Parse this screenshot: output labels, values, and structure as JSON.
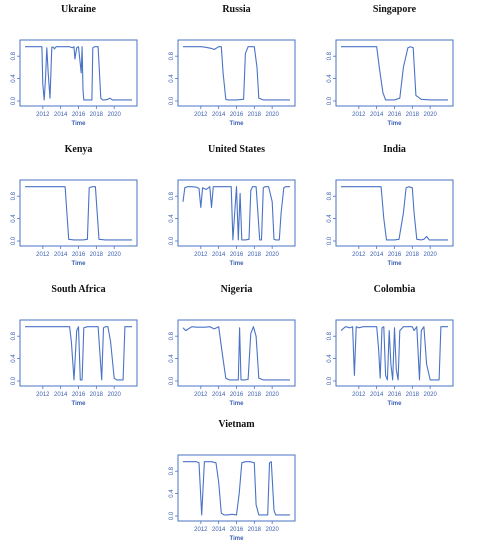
{
  "colors": {
    "series": "#4a73c6",
    "axis": "#4a73c6",
    "tick": "#3a5fb0",
    "title": "#111111"
  },
  "chart_data": [
    {
      "type": "line",
      "title": "Ukraine",
      "xlabel": "Time",
      "ylabel": "",
      "xlim": [
        2010,
        2022
      ],
      "ylim": [
        0,
        1
      ],
      "xticks": [
        "2012",
        "2014",
        "2016",
        "2018",
        "2020"
      ],
      "yticks": [
        "0.0",
        "0.4",
        "0.8"
      ],
      "series": [
        {
          "x": [
            2010,
            2011.9,
            2012.0,
            2012.15,
            2012.3,
            2012.45,
            2012.6,
            2012.8,
            2013,
            2013.2,
            2013.3,
            2013.5,
            2014,
            2015,
            2015.3,
            2015.5,
            2015.6,
            2015.8,
            2016,
            2016.3,
            2016.4,
            2016.5,
            2016.6,
            2016.8,
            2017.2,
            2017.5,
            2017.6,
            2017.8,
            2018.0,
            2018.2,
            2018.5,
            2018.7,
            2018.9,
            2019.3,
            2019.5,
            2019.8,
            2020,
            2020.2,
            2020.5,
            2022
          ],
          "y": [
            0.97,
            0.97,
            0.3,
            0.02,
            0.4,
            0.95,
            0.5,
            0.05,
            0.96,
            0.96,
            0.93,
            0.97,
            0.97,
            0.97,
            0.95,
            0.97,
            0.75,
            0.95,
            0.97,
            0.5,
            0.97,
            0.2,
            0.02,
            0.02,
            0.02,
            0.02,
            0.95,
            0.97,
            0.97,
            0.97,
            0.05,
            0.02,
            0.02,
            0.03,
            0.05,
            0.02,
            0.02,
            0.02,
            0.02,
            0.02
          ]
        }
      ]
    },
    {
      "type": "line",
      "title": "Russia",
      "xlabel": "Time",
      "ylabel": "",
      "xlim": [
        2010,
        2022
      ],
      "ylim": [
        0,
        1
      ],
      "xticks": [
        "2012",
        "2014",
        "2016",
        "2018",
        "2020"
      ],
      "yticks": [
        "0.0",
        "0.4",
        "0.8"
      ],
      "series": [
        {
          "x": [
            2010,
            2012,
            2012.5,
            2013.2,
            2013.5,
            2014,
            2014.3,
            2014.5,
            2014.8,
            2015,
            2016,
            2016.8,
            2017,
            2017.3,
            2018,
            2018.3,
            2018.5,
            2019,
            2020,
            2022
          ],
          "y": [
            0.97,
            0.97,
            0.96,
            0.94,
            0.92,
            0.97,
            0.97,
            0.5,
            0.03,
            0.02,
            0.02,
            0.03,
            0.85,
            0.97,
            0.97,
            0.6,
            0.05,
            0.02,
            0.02,
            0.02
          ]
        }
      ]
    },
    {
      "type": "line",
      "title": "Singapore",
      "xlabel": "Time",
      "ylabel": "",
      "xlim": [
        2010,
        2022
      ],
      "ylim": [
        0,
        1
      ],
      "xticks": [
        "2012",
        "2014",
        "2016",
        "2018",
        "2020"
      ],
      "yticks": [
        "0.0",
        "0.4",
        "0.8"
      ],
      "series": [
        {
          "x": [
            2010,
            2013,
            2014,
            2014.3,
            2014.7,
            2015,
            2016,
            2016.6,
            2017,
            2017.5,
            2017.8,
            2018.1,
            2018.4,
            2019,
            2020,
            2022
          ],
          "y": [
            0.97,
            0.97,
            0.97,
            0.6,
            0.15,
            0.02,
            0.02,
            0.05,
            0.6,
            0.95,
            0.97,
            0.95,
            0.1,
            0.03,
            0.02,
            0.02
          ]
        }
      ]
    },
    {
      "type": "line",
      "title": "Kenya",
      "xlabel": "Time",
      "ylabel": "",
      "xlim": [
        2010,
        2022
      ],
      "ylim": [
        0,
        1
      ],
      "xticks": [
        "2012",
        "2014",
        "2016",
        "2018",
        "2020"
      ],
      "yticks": [
        "0.0",
        "0.4",
        "0.8"
      ],
      "series": [
        {
          "x": [
            2010,
            2013,
            2014.5,
            2014.7,
            2014.9,
            2015.5,
            2016.5,
            2017,
            2017.2,
            2017.5,
            2017.9,
            2018.1,
            2018.3,
            2019,
            2020,
            2022
          ],
          "y": [
            0.97,
            0.97,
            0.97,
            0.5,
            0.03,
            0.02,
            0.02,
            0.03,
            0.95,
            0.97,
            0.97,
            0.5,
            0.03,
            0.02,
            0.02,
            0.02
          ]
        }
      ]
    },
    {
      "type": "line",
      "title": "United States",
      "xlabel": "Time",
      "ylabel": "",
      "xlim": [
        2010,
        2022
      ],
      "ylim": [
        0,
        1
      ],
      "xticks": [
        "2012",
        "2014",
        "2016",
        "2018",
        "2020"
      ],
      "yticks": [
        "0.0",
        "0.4",
        "0.8"
      ],
      "series": [
        {
          "x": [
            2010,
            2010.2,
            2010.5,
            2011,
            2011.5,
            2011.8,
            2012,
            2012.2,
            2012.6,
            2013,
            2013.2,
            2013.4,
            2013.8,
            2014,
            2014.5,
            2015,
            2015.4,
            2015.6,
            2015.8,
            2016,
            2016.2,
            2016.4,
            2016.6,
            2017,
            2017.4,
            2017.6,
            2017.8,
            2018.2,
            2018.4,
            2018.6,
            2018.8,
            2019,
            2019.2,
            2019.6,
            2020,
            2020.2,
            2020.4,
            2020.8,
            2021,
            2021.3,
            2021.5,
            2022
          ],
          "y": [
            0.7,
            0.95,
            0.97,
            0.97,
            0.96,
            0.94,
            0.6,
            0.95,
            0.92,
            0.97,
            0.6,
            0.97,
            0.97,
            0.97,
            0.97,
            0.97,
            0.97,
            0.02,
            0.5,
            0.97,
            0.02,
            0.85,
            0.02,
            0.02,
            0.03,
            0.9,
            0.97,
            0.97,
            0.5,
            0.02,
            0.02,
            0.95,
            0.97,
            0.97,
            0.7,
            0.03,
            0.02,
            0.02,
            0.5,
            0.95,
            0.97,
            0.97
          ]
        }
      ]
    },
    {
      "type": "line",
      "title": "India",
      "xlabel": "Time",
      "ylabel": "",
      "xlim": [
        2010,
        2022
      ],
      "ylim": [
        0,
        1
      ],
      "xticks": [
        "2012",
        "2014",
        "2016",
        "2018",
        "2020"
      ],
      "yticks": [
        "0.0",
        "0.4",
        "0.8"
      ],
      "series": [
        {
          "x": [
            2010,
            2013,
            2014.5,
            2014.8,
            2015.1,
            2016,
            2016.5,
            2017,
            2017.3,
            2017.6,
            2018,
            2018.2,
            2018.5,
            2019,
            2019.3,
            2019.6,
            2019.9,
            2020.2,
            2021,
            2022
          ],
          "y": [
            0.97,
            0.97,
            0.97,
            0.4,
            0.02,
            0.02,
            0.03,
            0.5,
            0.95,
            0.97,
            0.95,
            0.5,
            0.03,
            0.02,
            0.03,
            0.08,
            0.02,
            0.02,
            0.02,
            0.02
          ]
        }
      ]
    },
    {
      "type": "line",
      "title": "South Africa",
      "xlabel": "Time",
      "ylabel": "",
      "xlim": [
        2010,
        2022
      ],
      "ylim": [
        0,
        1
      ],
      "xticks": [
        "2012",
        "2014",
        "2016",
        "2018",
        "2020"
      ],
      "yticks": [
        "0.0",
        "0.4",
        "0.8"
      ],
      "series": [
        {
          "x": [
            2010,
            2012,
            2014,
            2015,
            2015.2,
            2015.5,
            2015.8,
            2016,
            2016.2,
            2016.4,
            2016.6,
            2017,
            2017.5,
            2018.2,
            2018.4,
            2018.6,
            2018.8,
            2019,
            2019.3,
            2019.6,
            2020,
            2020.3,
            2020.6,
            2021,
            2021.2,
            2021.4,
            2022
          ],
          "y": [
            0.97,
            0.97,
            0.97,
            0.97,
            0.7,
            0.02,
            0.9,
            0.97,
            0.02,
            0.02,
            0.95,
            0.97,
            0.97,
            0.97,
            0.5,
            0.02,
            0.95,
            0.97,
            0.97,
            0.7,
            0.05,
            0.02,
            0.02,
            0.02,
            0.97,
            0.97,
            0.97
          ]
        }
      ]
    },
    {
      "type": "line",
      "title": "Nigeria",
      "xlabel": "Time",
      "ylabel": "",
      "xlim": [
        2010,
        2022
      ],
      "ylim": [
        0,
        1
      ],
      "xticks": [
        "2012",
        "2014",
        "2016",
        "2018",
        "2020"
      ],
      "yticks": [
        "0.0",
        "0.4",
        "0.8"
      ],
      "series": [
        {
          "x": [
            2010,
            2010.3,
            2011,
            2011.5,
            2012.5,
            2013,
            2013.5,
            2014,
            2014.4,
            2014.8,
            2015.2,
            2016,
            2016.2,
            2016.35,
            2016.5,
            2017,
            2017.3,
            2017.6,
            2017.9,
            2018.2,
            2018.5,
            2019,
            2020,
            2022
          ],
          "y": [
            0.95,
            0.9,
            0.97,
            0.96,
            0.96,
            0.97,
            0.93,
            0.97,
            0.5,
            0.05,
            0.02,
            0.02,
            0.02,
            0.95,
            0.02,
            0.02,
            0.03,
            0.85,
            0.97,
            0.8,
            0.05,
            0.02,
            0.02,
            0.02
          ]
        }
      ]
    },
    {
      "type": "line",
      "title": "Colombia",
      "xlabel": "Time",
      "ylabel": "",
      "xlim": [
        2010,
        2022
      ],
      "ylim": [
        0,
        1
      ],
      "xticks": [
        "2012",
        "2014",
        "2016",
        "2018",
        "2020"
      ],
      "yticks": [
        "0.0",
        "0.4",
        "0.8"
      ],
      "series": [
        {
          "x": [
            2010,
            2010.5,
            2011,
            2011.3,
            2011.5,
            2011.7,
            2012,
            2012.5,
            2013,
            2013.5,
            2014,
            2014.2,
            2014.4,
            2014.6,
            2014.8,
            2015,
            2015.2,
            2015.4,
            2015.6,
            2015.8,
            2016,
            2016.2,
            2016.4,
            2016.6,
            2017,
            2017.5,
            2018,
            2018.2,
            2018.5,
            2018.8,
            2019,
            2019.3,
            2019.6,
            2020,
            2020.5,
            2021,
            2021.2,
            2022
          ],
          "y": [
            0.9,
            0.97,
            0.95,
            0.97,
            0.1,
            0.97,
            0.95,
            0.97,
            0.97,
            0.97,
            0.97,
            0.6,
            0.05,
            0.95,
            0.97,
            0.1,
            0.02,
            0.9,
            0.3,
            0.02,
            0.95,
            0.2,
            0.02,
            0.9,
            0.97,
            0.97,
            0.97,
            0.9,
            0.97,
            0.02,
            0.9,
            0.97,
            0.3,
            0.02,
            0.02,
            0.02,
            0.97,
            0.97
          ]
        }
      ]
    },
    {
      "type": "line",
      "title": "Vietnam",
      "xlabel": "Time",
      "ylabel": "",
      "xlim": [
        2010,
        2022
      ],
      "ylim": [
        0,
        1
      ],
      "xticks": [
        "2012",
        "2014",
        "2016",
        "2018",
        "2020"
      ],
      "yticks": [
        "0.0",
        "0.4",
        "0.8"
      ],
      "series": [
        {
          "x": [
            2010,
            2011.5,
            2011.8,
            2012.1,
            2012.4,
            2012.7,
            2013.2,
            2013.7,
            2014,
            2014.3,
            2014.6,
            2015,
            2015.5,
            2016,
            2016.3,
            2016.6,
            2017,
            2017.5,
            2018,
            2018.2,
            2018.5,
            2019,
            2019.5,
            2019.7,
            2019.9,
            2020.2,
            2020.4,
            2022
          ],
          "y": [
            0.97,
            0.97,
            0.95,
            0.02,
            0.97,
            0.97,
            0.97,
            0.95,
            0.6,
            0.05,
            0.02,
            0.02,
            0.03,
            0.02,
            0.4,
            0.95,
            0.97,
            0.97,
            0.95,
            0.2,
            0.02,
            0.02,
            0.02,
            0.95,
            0.97,
            0.1,
            0.02,
            0.02
          ]
        }
      ]
    }
  ]
}
